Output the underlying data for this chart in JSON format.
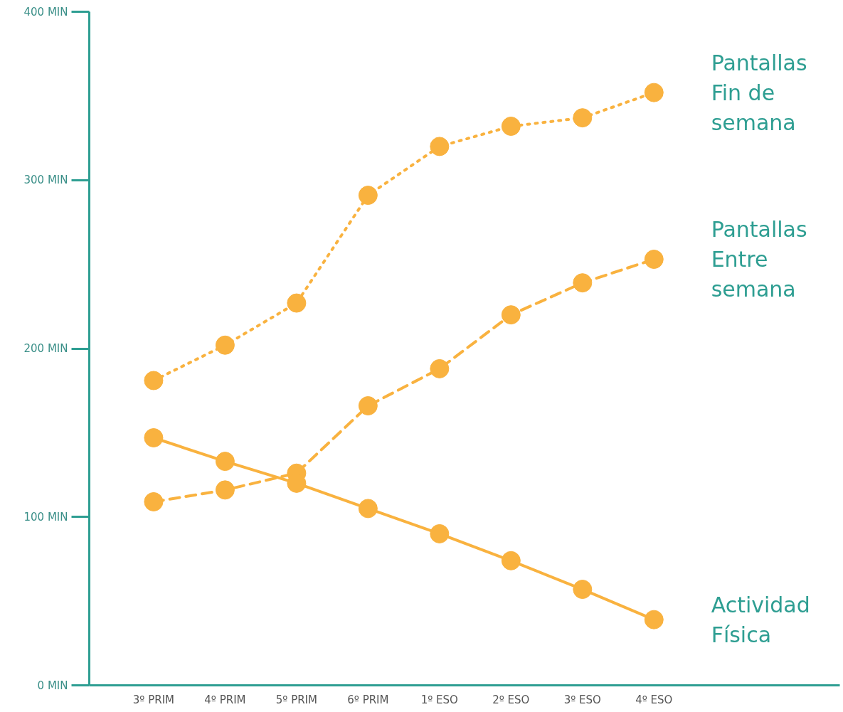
{
  "chart_data": {
    "type": "line",
    "categories": [
      "3º PRIM",
      "4º PRIM",
      "5º PRIM",
      "6º PRIM",
      "1º ESO",
      "2º ESO",
      "3º ESO",
      "4º ESO"
    ],
    "series": [
      {
        "name": "Pantallas Fin de semana",
        "color": "#f9b23f",
        "line_style": "dotted",
        "values": [
          181,
          202,
          227,
          291,
          320,
          332,
          337,
          352
        ]
      },
      {
        "name": "Pantallas Entre semana",
        "color": "#f9b23f",
        "line_style": "dashed",
        "values": [
          109,
          116,
          126,
          166,
          188,
          220,
          239,
          253
        ]
      },
      {
        "name": "Actividad Física",
        "color": "#f9b23f",
        "line_style": "solid",
        "values": [
          147,
          133,
          120,
          105,
          90,
          74,
          57,
          39
        ]
      }
    ],
    "ylim": [
      0,
      400
    ],
    "yticks": [
      {
        "value": 0,
        "label": "0 MIN"
      },
      {
        "value": 100,
        "label": "100 MIN"
      },
      {
        "value": 200,
        "label": "200 MIN"
      },
      {
        "value": 300,
        "label": "300 MIN"
      },
      {
        "value": 400,
        "label": "400 MIN"
      }
    ],
    "marker": "circle",
    "grid": false
  }
}
